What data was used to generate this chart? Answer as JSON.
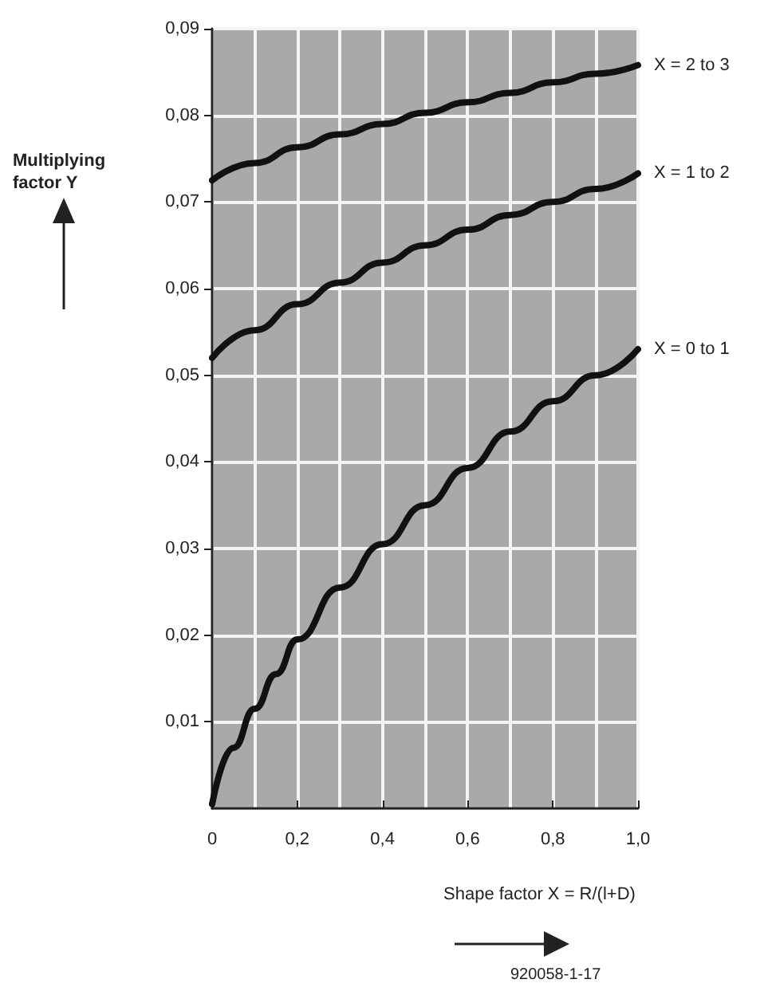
{
  "chart_data": {
    "type": "line",
    "xlabel": "Shape factor X = R/(l+D)",
    "ylabel": "Multiplying factor Y",
    "annotations": [
      "920058-1-17"
    ],
    "xlim": [
      0,
      1.0
    ],
    "xticks": [
      {
        "value": 0,
        "label": "0"
      },
      {
        "value": 0.2,
        "label": "0,2"
      },
      {
        "value": 0.4,
        "label": "0,4"
      },
      {
        "value": 0.6,
        "label": "0,6"
      },
      {
        "value": 0.8,
        "label": "0,8"
      },
      {
        "value": 1.0,
        "label": "1,0"
      }
    ],
    "ylim": [
      0,
      0.09
    ],
    "yticks": [
      {
        "value": 0.01,
        "label": "0,01"
      },
      {
        "value": 0.02,
        "label": "0,02"
      },
      {
        "value": 0.03,
        "label": "0,03"
      },
      {
        "value": 0.04,
        "label": "0,04"
      },
      {
        "value": 0.05,
        "label": "0,05"
      },
      {
        "value": 0.06,
        "label": "0,06"
      },
      {
        "value": 0.07,
        "label": "0,07"
      },
      {
        "value": 0.08,
        "label": "0,08"
      },
      {
        "value": 0.09,
        "label": "0,09"
      }
    ],
    "grid": true,
    "legend": false,
    "marker": "none",
    "line_style": "solid",
    "series": [
      {
        "name": "X = 2 to 3",
        "color": "#111111",
        "x": [
          0,
          0.1,
          0.2,
          0.3,
          0.4,
          0.5,
          0.6,
          0.7,
          0.8,
          0.9,
          1.0
        ],
        "values": [
          0.0725,
          0.0745,
          0.0763,
          0.0778,
          0.079,
          0.0803,
          0.0815,
          0.0826,
          0.0838,
          0.0848,
          0.0858
        ]
      },
      {
        "name": "X = 1 to 2",
        "color": "#111111",
        "x": [
          0,
          0.1,
          0.2,
          0.3,
          0.4,
          0.5,
          0.6,
          0.7,
          0.8,
          0.9,
          1.0
        ],
        "values": [
          0.052,
          0.0552,
          0.0582,
          0.0607,
          0.063,
          0.065,
          0.0668,
          0.0685,
          0.07,
          0.0715,
          0.0733
        ]
      },
      {
        "name": "X = 0 to 1",
        "color": "#111111",
        "x": [
          0,
          0.05,
          0.1,
          0.15,
          0.2,
          0.3,
          0.4,
          0.5,
          0.6,
          0.7,
          0.8,
          0.9,
          1.0
        ],
        "values": [
          0.0005,
          0.007,
          0.0115,
          0.0155,
          0.0195,
          0.0255,
          0.0305,
          0.035,
          0.0393,
          0.0435,
          0.047,
          0.05,
          0.053
        ]
      }
    ]
  }
}
